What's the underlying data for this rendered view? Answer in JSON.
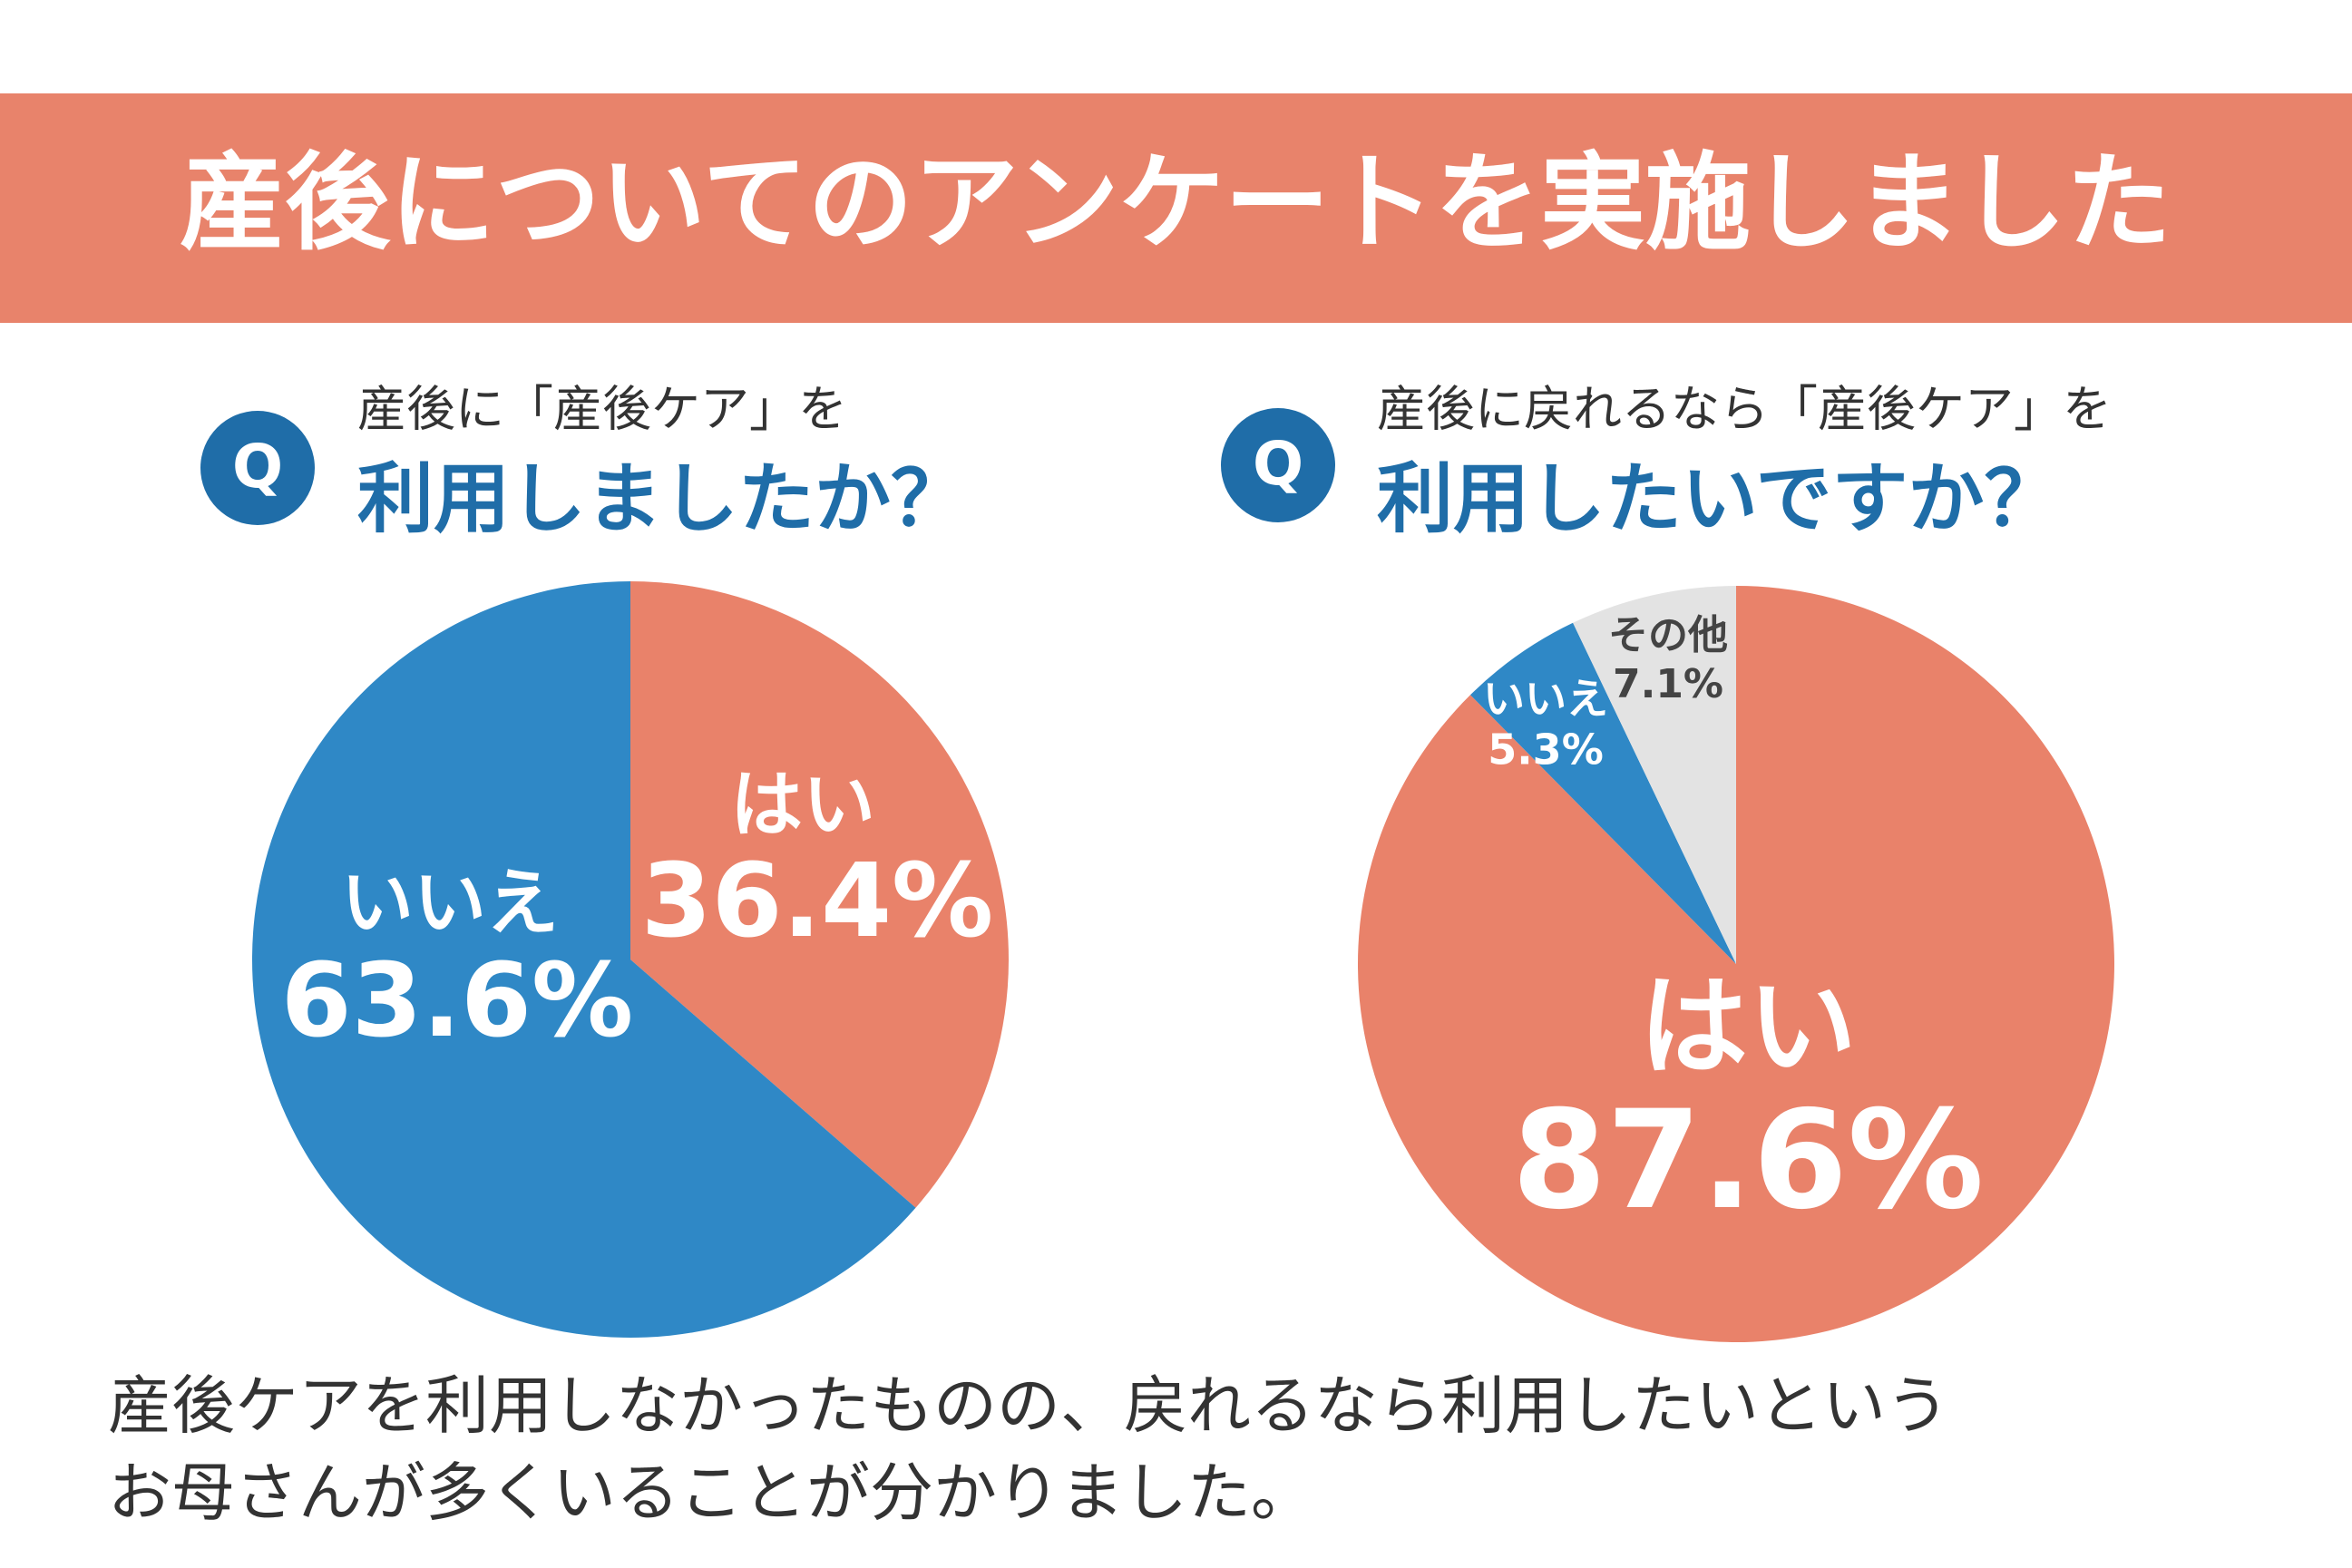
{
  "header": {
    "title": "産後についてのアンケートを実施しました"
  },
  "chart_data": [
    {
      "type": "pie",
      "badge": "Q",
      "subtitle": "産後に「産後ケア」を",
      "title": "利用しましたか？",
      "categories": [
        "はい",
        "いいえ"
      ],
      "values": [
        36.4,
        63.6
      ],
      "value_labels": [
        "36.4%",
        "63.6%"
      ],
      "colors": [
        "#e9826a",
        "#2f88c6"
      ]
    },
    {
      "type": "pie",
      "badge": "Q",
      "subtitle": "産後に戻れるなら「産後ケア」を",
      "title": "利用したいですか？",
      "categories": [
        "はい",
        "いいえ",
        "その他"
      ],
      "values": [
        87.6,
        5.3,
        7.1
      ],
      "value_labels": [
        "87.6%",
        "5.3%",
        "7.1%"
      ],
      "colors": [
        "#e9826a",
        "#2f88c6",
        "#e3e3e3"
      ]
    }
  ],
  "footer": {
    "lines": [
      "産後ケアを利用しなかったものの、戻れるなら利用したいという",
      "お母さんが多くいることが分かりました。"
    ]
  }
}
